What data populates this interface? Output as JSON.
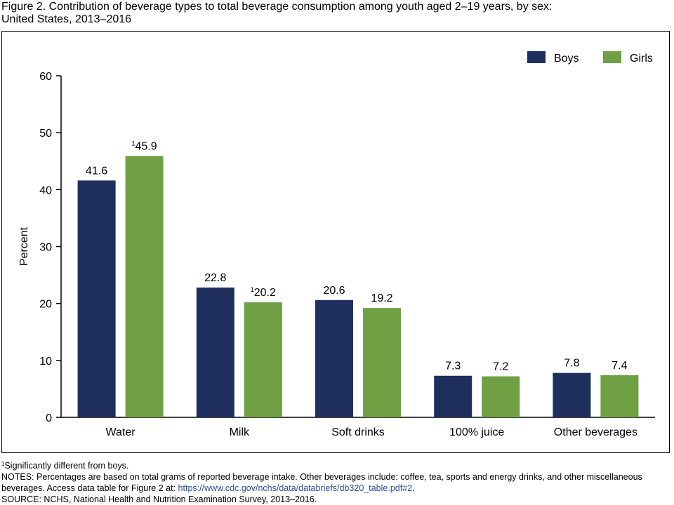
{
  "figure": {
    "title_line1": "Figure 2. Contribution of beverage types to total beverage consumption among youth aged 2–19 years, by sex:",
    "title_line2": "United States, 2013–2016"
  },
  "chart_data": {
    "type": "bar",
    "categories": [
      "Water",
      "Milk",
      "Soft drinks",
      "100% juice",
      "Other beverages"
    ],
    "series": [
      {
        "name": "Boys",
        "color": "#1e2f5e",
        "values": [
          41.6,
          22.8,
          20.6,
          7.3,
          7.8
        ],
        "footnote": [
          false,
          false,
          false,
          false,
          false
        ]
      },
      {
        "name": "Girls",
        "color": "#6fa043",
        "values": [
          45.9,
          20.2,
          19.2,
          7.2,
          7.4
        ],
        "footnote": [
          true,
          true,
          false,
          false,
          false
        ]
      }
    ],
    "ylabel": "Percent",
    "xlabel": "",
    "ylim": [
      0,
      60
    ],
    "yticks": [
      0,
      10,
      20,
      30,
      40,
      50,
      60
    ],
    "value_labels": true,
    "footnote_marker": "1",
    "legend_position": "top-right",
    "grid": false
  },
  "notes": {
    "footnote_marker": "1",
    "footnote": "Significantly different from boys.",
    "notes_text": "NOTES: Percentages are based on total grams of reported beverage intake. Other beverages include: coffee, tea, sports and energy drinks, and other miscellaneous beverages. Access data table for Figure 2 at: ",
    "link_text": "https://www.cdc.gov/nchs/data/databriefs/db320_table.pdf#2",
    "link_suffix": ".",
    "source": "SOURCE: NCHS, National Health and Nutrition Examination Survey, 2013–2016."
  }
}
